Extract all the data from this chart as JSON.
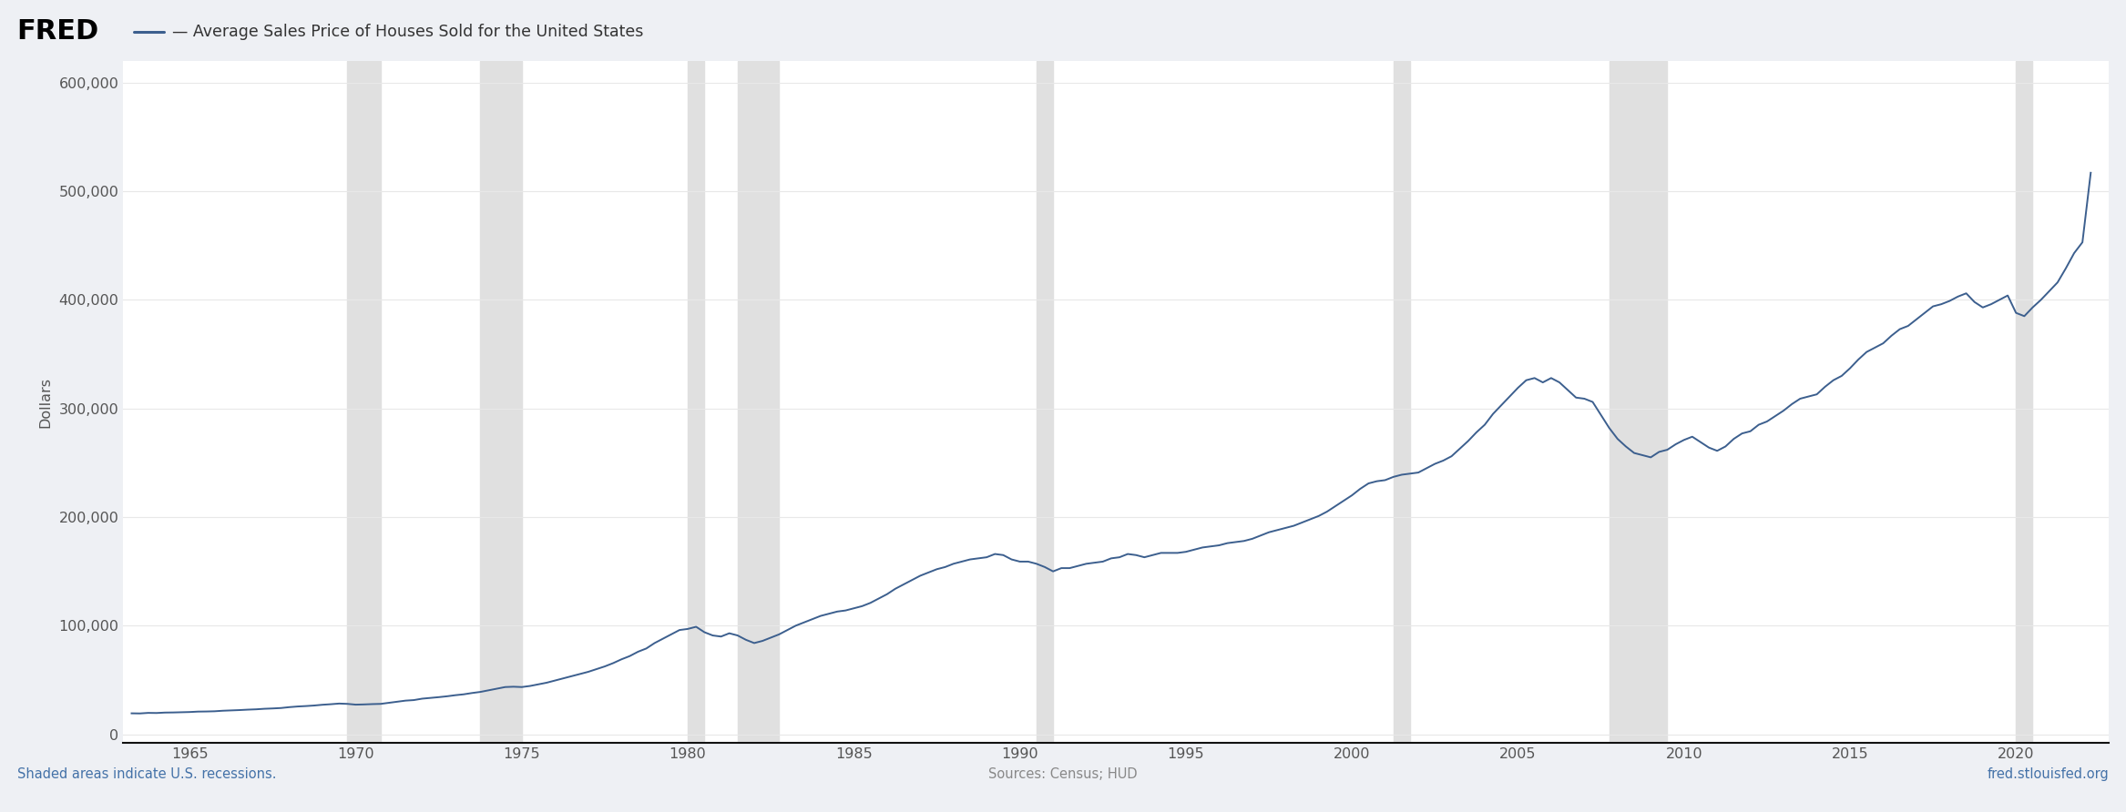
{
  "title": "Average Sales Price of Houses Sold for the United States",
  "ylabel": "Dollars",
  "line_color": "#3c5f8e",
  "background_color": "#eef0f4",
  "plot_bg_color": "#ffffff",
  "recession_color": "#e0e0e0",
  "recessions": [
    [
      1969.75,
      1970.75
    ],
    [
      1973.75,
      1975.0
    ],
    [
      1980.0,
      1980.5
    ],
    [
      1981.5,
      1982.75
    ],
    [
      1990.5,
      1991.0
    ],
    [
      2001.25,
      2001.75
    ],
    [
      2007.75,
      2009.5
    ],
    [
      2020.0,
      2020.5
    ]
  ],
  "yticks": [
    0,
    100000,
    200000,
    300000,
    400000,
    500000,
    600000
  ],
  "ytick_labels": [
    "0",
    "100,000",
    "200,000",
    "300,000",
    "400,000",
    "500,000",
    "600,000"
  ],
  "xticks": [
    1965,
    1970,
    1975,
    1980,
    1985,
    1990,
    1995,
    2000,
    2005,
    2010,
    2015,
    2020
  ],
  "ylim": [
    -8000,
    620000
  ],
  "xlim": [
    1963.0,
    2022.8
  ],
  "footer_left": "Shaded areas indicate U.S. recessions.",
  "footer_center": "Sources: Census; HUD",
  "footer_right": "fred.stlouisfed.org",
  "fred_text": "FRED",
  "data": {
    "years": [
      1963.25,
      1963.5,
      1963.75,
      1964.0,
      1964.25,
      1964.5,
      1964.75,
      1965.0,
      1965.25,
      1965.5,
      1965.75,
      1966.0,
      1966.25,
      1966.5,
      1966.75,
      1967.0,
      1967.25,
      1967.5,
      1967.75,
      1968.0,
      1968.25,
      1968.5,
      1968.75,
      1969.0,
      1969.25,
      1969.5,
      1969.75,
      1970.0,
      1970.25,
      1970.5,
      1970.75,
      1971.0,
      1971.25,
      1971.5,
      1971.75,
      1972.0,
      1972.25,
      1972.5,
      1972.75,
      1973.0,
      1973.25,
      1973.5,
      1973.75,
      1974.0,
      1974.25,
      1974.5,
      1974.75,
      1975.0,
      1975.25,
      1975.5,
      1975.75,
      1976.0,
      1976.25,
      1976.5,
      1976.75,
      1977.0,
      1977.25,
      1977.5,
      1977.75,
      1978.0,
      1978.25,
      1978.5,
      1978.75,
      1979.0,
      1979.25,
      1979.5,
      1979.75,
      1980.0,
      1980.25,
      1980.5,
      1980.75,
      1981.0,
      1981.25,
      1981.5,
      1981.75,
      1982.0,
      1982.25,
      1982.5,
      1982.75,
      1983.0,
      1983.25,
      1983.5,
      1983.75,
      1984.0,
      1984.25,
      1984.5,
      1984.75,
      1985.0,
      1985.25,
      1985.5,
      1985.75,
      1986.0,
      1986.25,
      1986.5,
      1986.75,
      1987.0,
      1987.25,
      1987.5,
      1987.75,
      1988.0,
      1988.25,
      1988.5,
      1988.75,
      1989.0,
      1989.25,
      1989.5,
      1989.75,
      1990.0,
      1990.25,
      1990.5,
      1990.75,
      1991.0,
      1991.25,
      1991.5,
      1991.75,
      1992.0,
      1992.25,
      1992.5,
      1992.75,
      1993.0,
      1993.25,
      1993.5,
      1993.75,
      1994.0,
      1994.25,
      1994.5,
      1994.75,
      1995.0,
      1995.25,
      1995.5,
      1995.75,
      1996.0,
      1996.25,
      1996.5,
      1996.75,
      1997.0,
      1997.25,
      1997.5,
      1997.75,
      1998.0,
      1998.25,
      1998.5,
      1998.75,
      1999.0,
      1999.25,
      1999.5,
      1999.75,
      2000.0,
      2000.25,
      2000.5,
      2000.75,
      2001.0,
      2001.25,
      2001.5,
      2001.75,
      2002.0,
      2002.25,
      2002.5,
      2002.75,
      2003.0,
      2003.25,
      2003.5,
      2003.75,
      2004.0,
      2004.25,
      2004.5,
      2004.75,
      2005.0,
      2005.25,
      2005.5,
      2005.75,
      2006.0,
      2006.25,
      2006.5,
      2006.75,
      2007.0,
      2007.25,
      2007.5,
      2007.75,
      2008.0,
      2008.25,
      2008.5,
      2008.75,
      2009.0,
      2009.25,
      2009.5,
      2009.75,
      2010.0,
      2010.25,
      2010.5,
      2010.75,
      2011.0,
      2011.25,
      2011.5,
      2011.75,
      2012.0,
      2012.25,
      2012.5,
      2012.75,
      2013.0,
      2013.25,
      2013.5,
      2013.75,
      2014.0,
      2014.25,
      2014.5,
      2014.75,
      2015.0,
      2015.25,
      2015.5,
      2015.75,
      2016.0,
      2016.25,
      2016.5,
      2016.75,
      2017.0,
      2017.25,
      2017.5,
      2017.75,
      2018.0,
      2018.25,
      2018.5,
      2018.75,
      2019.0,
      2019.25,
      2019.5,
      2019.75,
      2020.0,
      2020.25,
      2020.5,
      2020.75,
      2021.0,
      2021.25,
      2021.5,
      2021.75,
      2022.0,
      2022.25
    ],
    "values": [
      19300,
      19200,
      19700,
      19600,
      20000,
      20100,
      20300,
      20500,
      20900,
      21000,
      21200,
      21700,
      22000,
      22300,
      22700,
      23000,
      23500,
      23800,
      24200,
      25000,
      25600,
      26000,
      26500,
      27200,
      27700,
      28300,
      28000,
      27300,
      27500,
      27800,
      28000,
      29000,
      30000,
      31000,
      31500,
      32800,
      33500,
      34200,
      35000,
      36000,
      36800,
      38000,
      39000,
      40500,
      42000,
      43500,
      43800,
      43500,
      44500,
      46000,
      47500,
      49500,
      51500,
      53500,
      55500,
      57500,
      60000,
      62500,
      65500,
      69000,
      72000,
      76000,
      79000,
      84000,
      88000,
      92000,
      96000,
      97000,
      99000,
      94000,
      91000,
      90000,
      93000,
      91000,
      87000,
      84000,
      86000,
      89000,
      92000,
      96000,
      100000,
      103000,
      106000,
      109000,
      111000,
      113000,
      114000,
      116000,
      118000,
      121000,
      125000,
      129000,
      134000,
      138000,
      142000,
      146000,
      149000,
      152000,
      154000,
      157000,
      159000,
      161000,
      162000,
      163000,
      166000,
      165000,
      161000,
      159000,
      159000,
      157000,
      154000,
      150000,
      153000,
      153000,
      155000,
      157000,
      158000,
      159000,
      162000,
      163000,
      166000,
      165000,
      163000,
      165000,
      167000,
      167000,
      167000,
      168000,
      170000,
      172000,
      173000,
      174000,
      176000,
      177000,
      178000,
      180000,
      183000,
      186000,
      188000,
      190000,
      192000,
      195000,
      198000,
      201000,
      205000,
      210000,
      215000,
      220000,
      226000,
      231000,
      233000,
      234000,
      237000,
      239000,
      240000,
      241000,
      245000,
      249000,
      252000,
      256000,
      263000,
      270000,
      278000,
      285000,
      295000,
      303000,
      311000,
      319000,
      326000,
      328000,
      324000,
      328000,
      324000,
      317000,
      310000,
      309000,
      306000,
      294000,
      282000,
      272000,
      265000,
      259000,
      257000,
      255000,
      260000,
      262000,
      267000,
      271000,
      274000,
      269000,
      264000,
      261000,
      265000,
      272000,
      277000,
      279000,
      285000,
      288000,
      293000,
      298000,
      304000,
      309000,
      311000,
      313000,
      320000,
      326000,
      330000,
      337000,
      345000,
      352000,
      356000,
      360000,
      367000,
      373000,
      376000,
      382000,
      388000,
      394000,
      396000,
      399000,
      403000,
      406000,
      398000,
      393000,
      396000,
      400000,
      404000,
      388000,
      385000,
      393000,
      400000,
      408000,
      416000,
      429000,
      443000,
      453000,
      517000
    ]
  }
}
